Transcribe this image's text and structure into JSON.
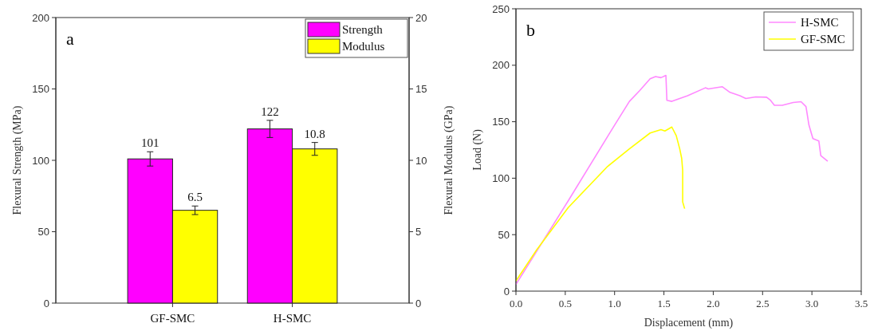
{
  "chart_data": [
    {
      "type": "bar",
      "categories": [
        "GF-SMC",
        "H-SMC"
      ],
      "ylabel": "Flexural Strength (MPa)",
      "y2label": "Flexural Modulus (GPa)",
      "ylim": [
        0,
        200
      ],
      "yticks": [
        0,
        50,
        100,
        150,
        200
      ],
      "y2lim": [
        0,
        20
      ],
      "y2ticks": [
        0,
        5,
        10,
        15,
        20
      ],
      "series": [
        {
          "name": "Strength",
          "color": "#ff00ff",
          "values": [
            101,
            122
          ],
          "errors": [
            5,
            6
          ]
        },
        {
          "name": "Modulus",
          "color": "#ffff00",
          "values": [
            6.5,
            10.8
          ],
          "errors": [
            0.3,
            0.45
          ],
          "axis": "y2"
        }
      ],
      "data_labels": true,
      "legend": "top right",
      "annotations": [
        "a"
      ]
    },
    {
      "type": "line",
      "xlabel": "Displacement (mm)",
      "ylabel": "Load (N)",
      "xlim": [
        0,
        3.5
      ],
      "xticks": [
        {
          "value": 0,
          "label": "0.0"
        },
        {
          "value": 0.5,
          "label": "0.5"
        },
        {
          "value": 1,
          "label": "1.0"
        },
        {
          "value": 1.5,
          "label": "1.5"
        },
        {
          "value": 2,
          "label": "2.0"
        },
        {
          "value": 2.5,
          "label": "2.5"
        },
        {
          "value": 3,
          "label": "3.0"
        },
        {
          "value": 3.5,
          "label": "3.5"
        }
      ],
      "ylim": [
        0,
        250
      ],
      "yticks": [
        0,
        50,
        100,
        150,
        200,
        250
      ],
      "legend": "top right",
      "grid": false,
      "marker": "none",
      "line_style": "solid",
      "annotations": [
        "b"
      ],
      "series": [
        {
          "name": "H-SMC",
          "color": "#ff88ff",
          "x": [
            0,
            0.53,
            1.0,
            1.15,
            1.255,
            1.36,
            1.415,
            1.47,
            1.52,
            1.53,
            1.58,
            1.74,
            1.92,
            1.95,
            2.09,
            2.17,
            2.27,
            2.33,
            2.43,
            2.54,
            2.58,
            2.62,
            2.7,
            2.81,
            2.89,
            2.94,
            2.97,
            3.01,
            3.07,
            3.09,
            3.16
          ],
          "values": [
            6,
            80,
            147,
            168,
            177.6,
            188,
            190,
            189,
            191,
            169,
            168,
            173,
            180,
            179,
            181,
            176,
            173,
            170.5,
            172,
            171.7,
            169,
            164.6,
            164.6,
            167,
            167.7,
            163.4,
            147,
            135,
            133,
            120,
            115
          ]
        },
        {
          "name": "GF-SMC",
          "color": "#ffff00",
          "x": [
            0,
            0.21,
            0.53,
            0.93,
            1.15,
            1.36,
            1.47,
            1.51,
            1.58,
            1.625,
            1.66,
            1.68,
            1.69,
            1.69,
            1.71
          ],
          "values": [
            9,
            36.5,
            74,
            110.5,
            126,
            140,
            143,
            141.8,
            145.3,
            137.6,
            126,
            117.6,
            107,
            79,
            73
          ]
        }
      ]
    }
  ]
}
